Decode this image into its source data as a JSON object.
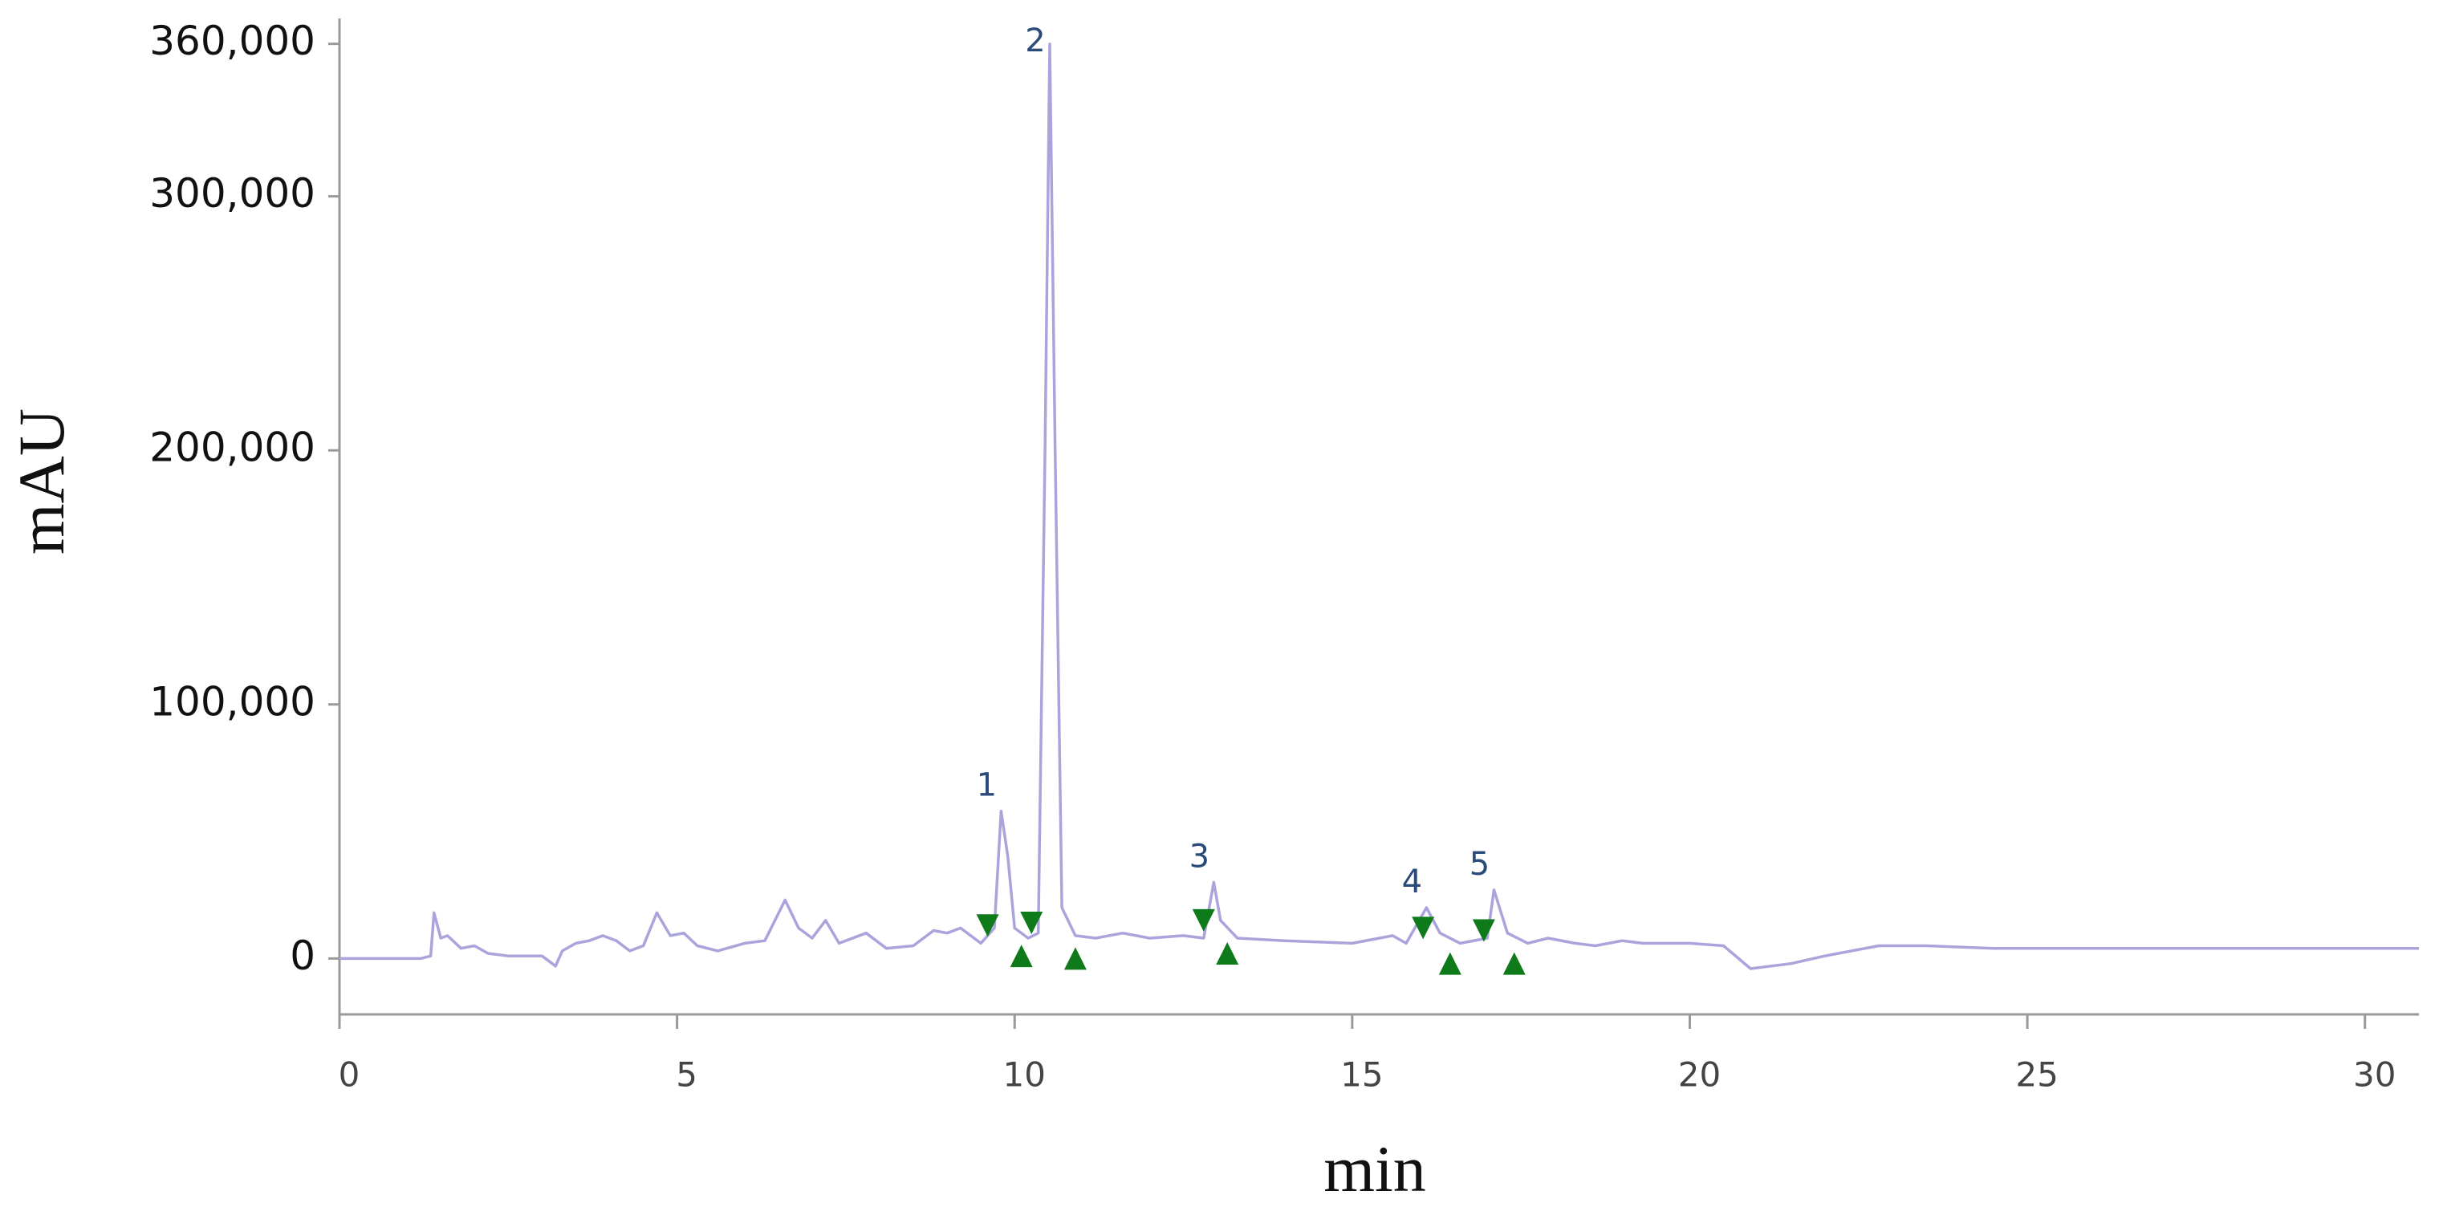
{
  "chart_data": {
    "type": "line",
    "x_label": "min",
    "y_label": "mAU",
    "xlim": [
      0,
      30.8
    ],
    "ylim": [
      -22000,
      370000
    ],
    "xticks": [
      0,
      5,
      10,
      15,
      20,
      25,
      30
    ],
    "yticks": [
      0,
      {
        "value": 100000,
        "label": "100,000"
      },
      {
        "value": 200000,
        "label": "200,000"
      },
      {
        "value": 300000,
        "label": "300,000"
      },
      {
        "value": 360000,
        "label": "360,000"
      }
    ],
    "series": [
      {
        "color": "#aaa4dc",
        "x": [
          0,
          1.2,
          1.35,
          1.4,
          1.5,
          1.6,
          1.8,
          2.0,
          2.2,
          2.5,
          3.0,
          3.2,
          3.3,
          3.5,
          3.7,
          3.9,
          4.1,
          4.3,
          4.5,
          4.7,
          4.9,
          5.1,
          5.3,
          5.6,
          6.0,
          6.3,
          6.6,
          6.8,
          7.0,
          7.2,
          7.4,
          7.8,
          8.1,
          8.5,
          8.8,
          9.0,
          9.2,
          9.5,
          9.7,
          9.8,
          9.9,
          10.0,
          10.2,
          10.35,
          10.45,
          10.52,
          10.6,
          10.7,
          10.9,
          11.2,
          11.6,
          12.0,
          12.5,
          12.8,
          12.95,
          13.05,
          13.3,
          14.0,
          15.0,
          15.6,
          15.8,
          16.1,
          16.3,
          16.6,
          17.0,
          17.1,
          17.3,
          17.6,
          17.9,
          18.3,
          18.6,
          19.0,
          19.3,
          20.0,
          20.5,
          20.9,
          21.5,
          22.0,
          22.8,
          23.5,
          24.5,
          30.8
        ],
        "values": [
          0,
          0,
          1000,
          18000,
          8000,
          9000,
          4000,
          5000,
          2000,
          1000,
          1000,
          -3000,
          3000,
          6000,
          7000,
          9000,
          7000,
          3000,
          5000,
          18000,
          9000,
          10000,
          5000,
          3000,
          6000,
          7000,
          23000,
          12000,
          8000,
          15000,
          6000,
          10000,
          4000,
          5000,
          11000,
          10000,
          12000,
          6000,
          12000,
          58000,
          40000,
          12000,
          8000,
          10000,
          200000,
          360000,
          200000,
          20000,
          9000,
          8000,
          10000,
          8000,
          9000,
          8000,
          30000,
          15000,
          8000,
          7000,
          6000,
          9000,
          6000,
          20000,
          10000,
          6000,
          8000,
          27000,
          10000,
          6000,
          8000,
          6000,
          5000,
          7000,
          6000,
          6000,
          5000,
          -4000,
          -2000,
          1000,
          5000,
          5000,
          4000,
          4000
        ]
      }
    ],
    "peak_starts": {
      "color": "#0f7a1a",
      "x": [
        9.6,
        10.25,
        12.8,
        16.05,
        16.95
      ],
      "values": [
        13000,
        14000,
        15000,
        12000,
        11000
      ]
    },
    "peak_ends": {
      "color": "#0f7a1a",
      "x": [
        10.1,
        10.9,
        13.15,
        16.45,
        17.4
      ],
      "values": [
        1000,
        0,
        2000,
        -2000,
        -2000
      ]
    },
    "peaks": [
      {
        "label": "1",
        "x": 9.8,
        "y": 58000
      },
      {
        "label": "2",
        "x": 10.52,
        "y": 360000
      },
      {
        "label": "3",
        "x": 12.95,
        "y": 30000
      },
      {
        "label": "4",
        "x": 16.1,
        "y": 20000
      },
      {
        "label": "5",
        "x": 17.1,
        "y": 27000
      }
    ]
  }
}
